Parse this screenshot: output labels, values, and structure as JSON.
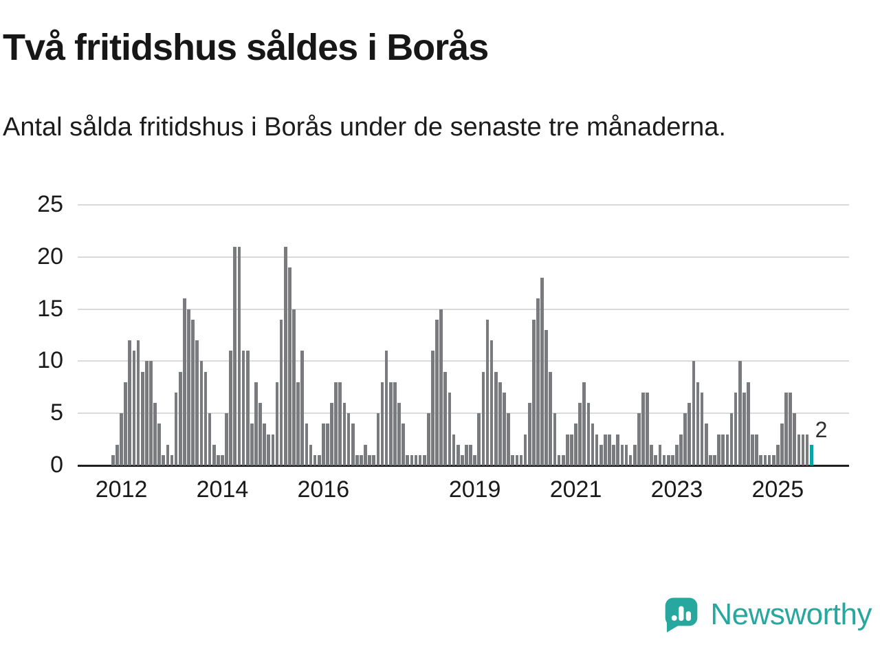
{
  "header": {
    "title": "Två fritidshus såldes i Borås",
    "subtitle": "Antal sålda fritidshus i Borås under de senaste tre månaderna."
  },
  "chart_data": {
    "type": "bar",
    "title": "Två fritidshus såldes i Borås",
    "subtitle": "Antal sålda fritidshus i Borås under de senaste tre månaderna.",
    "ylim": [
      0,
      25
    ],
    "y_ticks": [
      0,
      5,
      10,
      15,
      20,
      25
    ],
    "x_ticks": [
      {
        "label": "2012",
        "index": 2
      },
      {
        "label": "2014",
        "index": 26
      },
      {
        "label": "2016",
        "index": 50
      },
      {
        "label": "2019",
        "index": 86
      },
      {
        "label": "2021",
        "index": 110
      },
      {
        "label": "2023",
        "index": 134
      },
      {
        "label": "2025",
        "index": 158
      }
    ],
    "values": [
      1,
      2,
      5,
      8,
      12,
      11,
      12,
      9,
      10,
      10,
      6,
      4,
      1,
      2,
      1,
      7,
      9,
      16,
      15,
      14,
      12,
      10,
      9,
      5,
      2,
      1,
      1,
      5,
      11,
      21,
      21,
      11,
      11,
      4,
      8,
      6,
      4,
      3,
      3,
      8,
      14,
      21,
      19,
      15,
      8,
      11,
      4,
      2,
      1,
      1,
      4,
      4,
      6,
      8,
      8,
      6,
      5,
      4,
      1,
      1,
      2,
      1,
      1,
      5,
      8,
      11,
      8,
      8,
      6,
      4,
      1,
      1,
      1,
      1,
      1,
      5,
      11,
      14,
      15,
      9,
      7,
      3,
      2,
      1,
      2,
      2,
      1,
      5,
      9,
      14,
      12,
      9,
      8,
      7,
      5,
      1,
      1,
      1,
      3,
      6,
      14,
      16,
      18,
      13,
      9,
      5,
      1,
      1,
      3,
      3,
      4,
      6,
      8,
      6,
      4,
      3,
      2,
      3,
      3,
      2,
      3,
      2,
      2,
      1,
      2,
      5,
      7,
      7,
      2,
      1,
      2,
      1,
      1,
      1,
      2,
      3,
      5,
      6,
      10,
      8,
      7,
      4,
      1,
      1,
      3,
      3,
      3,
      5,
      7,
      10,
      7,
      8,
      3,
      3,
      1,
      1,
      1,
      1,
      2,
      4,
      7,
      7,
      5,
      3,
      3,
      3,
      2
    ],
    "highlight_index": 166,
    "highlight_label": "2",
    "bar_color": "#7a7b7f",
    "highlight_color": "#0ba3a3",
    "grid_color": "#dadada",
    "axis_color": "#1f1f1f",
    "grid": true,
    "legend": "none"
  },
  "footer": {
    "brand": "Newsworthy",
    "brand_color": "#27a79d"
  }
}
